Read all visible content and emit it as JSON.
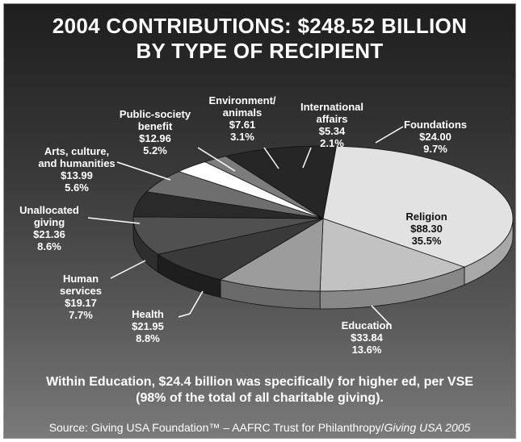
{
  "title": {
    "line1": "2004 CONTRIBUTIONS: $248.52 BILLION",
    "line2": "BY TYPE OF RECIPIENT"
  },
  "note": {
    "line1": "Within Education, $24.4 billion was specifically for higher ed, per VSE",
    "line2": "(98% of the total of all charitable giving)."
  },
  "source": {
    "main": "Source: Giving USA Foundation™ – AAFRC Trust for Philanthropy/",
    "italic": "Giving USA 2005"
  },
  "chart_data": {
    "type": "pie",
    "title": "2004 CONTRIBUTIONS: $248.52 BILLION BY TYPE OF RECIPIENT",
    "style": "3d",
    "total": 248.52,
    "slices": [
      {
        "name": "Religion",
        "amount": "$88.30",
        "percent": "35.5%",
        "value": 88.3,
        "color": "#e2e2e2",
        "side": "#a8a8a8"
      },
      {
        "name": "Education",
        "amount": "$33.84",
        "percent": "13.6%",
        "value": 33.84,
        "color": "#c2c2c2",
        "side": "#888888"
      },
      {
        "name": "Health",
        "amount": "$21.95",
        "percent": "8.8%",
        "value": 21.95,
        "color": "#9c9c9c",
        "side": "#6a6a6a"
      },
      {
        "name": "Human services",
        "amount": "$19.17",
        "percent": "7.7%",
        "value": 19.17,
        "color": "#3a3a3a",
        "side": "#1e1e1e"
      },
      {
        "name": "Unallocated giving",
        "amount": "$21.36",
        "percent": "8.6%",
        "value": 21.36,
        "color": "#505050",
        "side": "#2e2e2e"
      },
      {
        "name": "Arts, culture, and humanities",
        "amount": "$13.99",
        "percent": "5.6%",
        "value": 13.99,
        "color": "#2a2a2a",
        "side": "#161616"
      },
      {
        "name": "Public-society benefit",
        "amount": "$12.96",
        "percent": "5.2%",
        "value": 12.96,
        "color": "#6e6e6e",
        "side": "#4a4a4a"
      },
      {
        "name": "Environment/ animals",
        "amount": "$7.61",
        "percent": "3.1%",
        "value": 7.61,
        "color": "#ffffff",
        "side": "#cfcfcf"
      },
      {
        "name": "International affairs",
        "amount": "$5.34",
        "percent": "2.1%",
        "value": 5.34,
        "color": "#7c7c7c",
        "side": "#555555"
      },
      {
        "name": "Foundations",
        "amount": "$24.00",
        "percent": "9.7%",
        "value": 24.0,
        "color": "#262626",
        "side": "#141414"
      }
    ]
  }
}
